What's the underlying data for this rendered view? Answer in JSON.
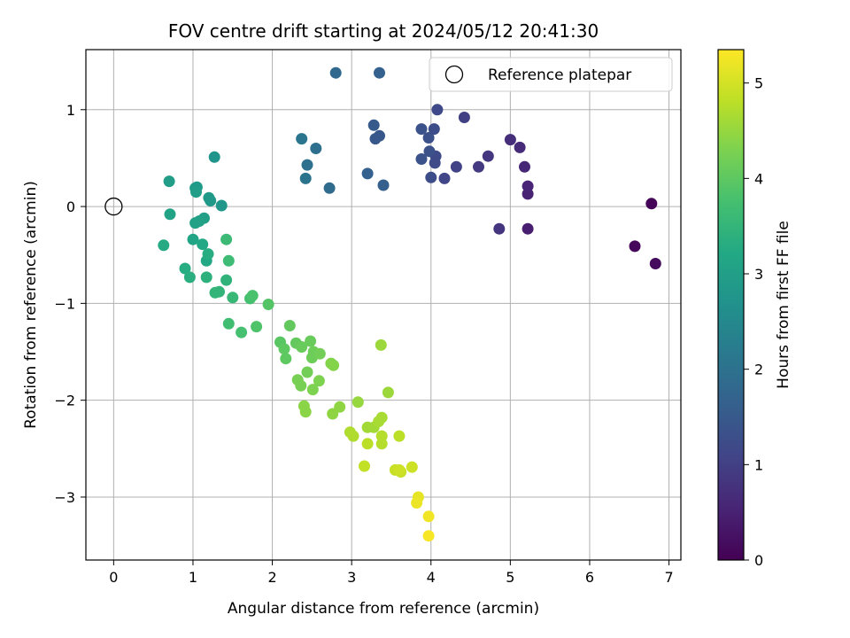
{
  "chart_data": {
    "type": "scatter",
    "title": "FOV centre drift starting at 2024/05/12 20:41:30",
    "xlabel": "Angular distance from reference (arcmin)",
    "ylabel": "Rotation from reference (arcmin)",
    "xlim": [
      -0.35,
      7.15
    ],
    "ylim": [
      -3.65,
      1.62
    ],
    "xticks": [
      0,
      1,
      2,
      3,
      4,
      5,
      6,
      7
    ],
    "yticks": [
      1,
      0,
      -1,
      -2,
      -3
    ],
    "grid": true,
    "colormap": "viridis",
    "colorbar": {
      "label": "Hours from first FF file",
      "range": [
        0,
        5.35
      ],
      "ticks": [
        0,
        1,
        2,
        3,
        4,
        5
      ]
    },
    "legend": {
      "position": "top-right",
      "entries": [
        "Reference platepar"
      ]
    },
    "reference": {
      "x": 0,
      "y": 0
    },
    "points": [
      [
        6.78,
        0.03,
        0.05
      ],
      [
        6.57,
        -0.41,
        0.1
      ],
      [
        6.83,
        -0.59,
        0.15
      ],
      [
        5.22,
        -0.23,
        0.45
      ],
      [
        5.22,
        0.13,
        0.5
      ],
      [
        5.22,
        0.21,
        0.55
      ],
      [
        5.18,
        0.41,
        0.6
      ],
      [
        5.12,
        0.61,
        0.65
      ],
      [
        5.0,
        0.69,
        0.7
      ],
      [
        4.86,
        -0.23,
        0.8
      ],
      [
        4.72,
        0.52,
        0.85
      ],
      [
        4.6,
        0.41,
        0.9
      ],
      [
        4.42,
        0.92,
        1.0
      ],
      [
        4.32,
        0.41,
        1.05
      ],
      [
        4.17,
        0.29,
        1.1
      ],
      [
        4.08,
        1.0,
        1.15
      ],
      [
        4.06,
        0.52,
        1.2
      ],
      [
        4.05,
        0.45,
        1.2
      ],
      [
        4.04,
        0.8,
        1.25
      ],
      [
        4.0,
        0.3,
        1.25
      ],
      [
        3.98,
        0.57,
        1.3
      ],
      [
        3.97,
        0.71,
        1.3
      ],
      [
        3.88,
        0.8,
        1.35
      ],
      [
        3.88,
        0.49,
        1.35
      ],
      [
        3.35,
        1.38,
        1.65
      ],
      [
        3.35,
        0.73,
        1.45
      ],
      [
        3.3,
        0.7,
        1.45
      ],
      [
        3.28,
        0.84,
        1.5
      ],
      [
        3.4,
        0.22,
        1.6
      ],
      [
        3.2,
        0.34,
        1.65
      ],
      [
        2.8,
        1.38,
        1.8
      ],
      [
        2.72,
        0.19,
        1.85
      ],
      [
        2.55,
        0.6,
        1.95
      ],
      [
        2.44,
        0.43,
        2.0
      ],
      [
        2.42,
        0.29,
        2.05
      ],
      [
        2.37,
        0.7,
        2.1
      ],
      [
        1.27,
        0.51,
        2.75
      ],
      [
        1.36,
        0.01,
        2.8
      ],
      [
        1.22,
        0.06,
        2.85
      ],
      [
        1.2,
        0.09,
        2.85
      ],
      [
        1.03,
        0.19,
        2.9
      ],
      [
        1.05,
        0.2,
        2.9
      ],
      [
        1.04,
        0.15,
        2.95
      ],
      [
        0.7,
        0.26,
        2.95
      ],
      [
        1.14,
        -0.12,
        3.0
      ],
      [
        1.08,
        -0.15,
        3.05
      ],
      [
        1.03,
        -0.17,
        3.05
      ],
      [
        0.71,
        -0.08,
        3.1
      ],
      [
        1.0,
        -0.34,
        3.15
      ],
      [
        1.12,
        -0.39,
        3.2
      ],
      [
        1.17,
        -0.56,
        3.2
      ],
      [
        0.63,
        -0.4,
        3.25
      ],
      [
        1.19,
        -0.49,
        3.3
      ],
      [
        0.9,
        -0.64,
        3.3
      ],
      [
        0.96,
        -0.73,
        3.35
      ],
      [
        1.17,
        -0.73,
        3.4
      ],
      [
        1.42,
        -0.76,
        3.45
      ],
      [
        1.28,
        -0.89,
        3.5
      ],
      [
        1.33,
        -0.88,
        3.5
      ],
      [
        1.5,
        -0.94,
        3.55
      ],
      [
        1.42,
        -0.34,
        3.6
      ],
      [
        1.45,
        -0.56,
        3.65
      ],
      [
        1.45,
        -1.21,
        3.7
      ],
      [
        1.61,
        -1.3,
        3.75
      ],
      [
        1.72,
        -0.95,
        3.75
      ],
      [
        1.75,
        -0.92,
        3.8
      ],
      [
        1.8,
        -1.24,
        3.85
      ],
      [
        1.95,
        -1.01,
        3.9
      ],
      [
        2.1,
        -1.4,
        3.95
      ],
      [
        2.15,
        -1.47,
        4.0
      ],
      [
        2.17,
        -1.57,
        4.0
      ],
      [
        2.22,
        -1.23,
        4.05
      ],
      [
        2.3,
        -1.41,
        4.05
      ],
      [
        2.37,
        -1.45,
        4.1
      ],
      [
        2.48,
        -1.39,
        4.1
      ],
      [
        2.5,
        -1.56,
        4.15
      ],
      [
        2.52,
        -1.5,
        4.15
      ],
      [
        2.6,
        -1.52,
        4.2
      ],
      [
        2.44,
        -1.71,
        4.2
      ],
      [
        2.32,
        -1.79,
        4.25
      ],
      [
        2.36,
        -1.85,
        4.25
      ],
      [
        2.51,
        -1.89,
        4.3
      ],
      [
        2.59,
        -1.8,
        4.3
      ],
      [
        2.74,
        -1.62,
        4.35
      ],
      [
        2.77,
        -1.64,
        4.35
      ],
      [
        2.4,
        -2.06,
        4.4
      ],
      [
        2.42,
        -2.12,
        4.4
      ],
      [
        2.76,
        -2.14,
        4.45
      ],
      [
        2.85,
        -2.07,
        4.45
      ],
      [
        3.08,
        -2.02,
        4.5
      ],
      [
        3.37,
        -1.43,
        4.55
      ],
      [
        3.46,
        -1.92,
        4.55
      ],
      [
        3.2,
        -2.28,
        4.6
      ],
      [
        3.28,
        -2.28,
        4.6
      ],
      [
        3.34,
        -2.22,
        4.65
      ],
      [
        3.38,
        -2.18,
        4.65
      ],
      [
        2.98,
        -2.33,
        4.7
      ],
      [
        3.02,
        -2.37,
        4.7
      ],
      [
        3.38,
        -2.37,
        4.75
      ],
      [
        3.38,
        -2.45,
        4.75
      ],
      [
        3.2,
        -2.45,
        4.8
      ],
      [
        3.6,
        -2.37,
        4.8
      ],
      [
        3.16,
        -2.68,
        4.85
      ],
      [
        3.55,
        -2.72,
        4.9
      ],
      [
        3.62,
        -2.74,
        4.9
      ],
      [
        3.6,
        -2.72,
        4.95
      ],
      [
        3.76,
        -2.69,
        4.95
      ],
      [
        3.84,
        -3.0,
        5.15
      ],
      [
        3.82,
        -3.06,
        5.2
      ],
      [
        3.97,
        -3.2,
        5.25
      ],
      [
        3.97,
        -3.4,
        5.3
      ]
    ]
  }
}
